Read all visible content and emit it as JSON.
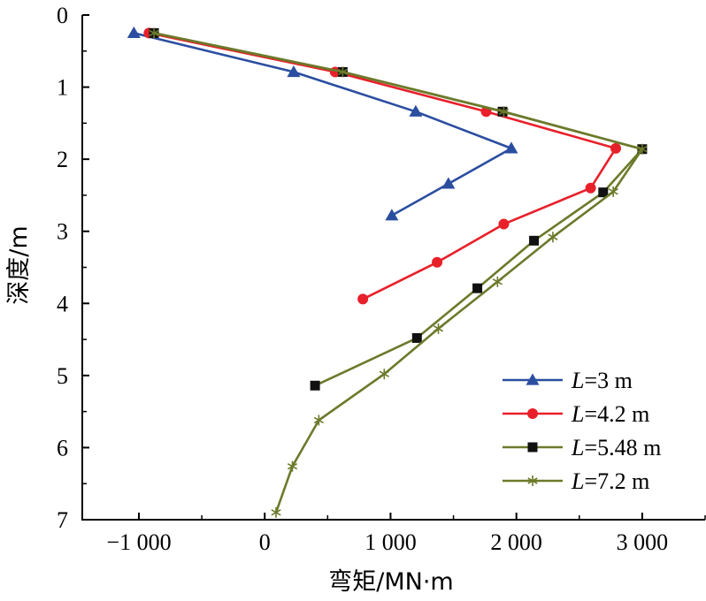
{
  "chart_data": {
    "type": "line",
    "title": "",
    "xlabel": "弯矩/MN·m",
    "ylabel": "深度/m",
    "xlim": [
      -1450,
      3500
    ],
    "ylim": [
      0,
      7
    ],
    "y_inverted": true,
    "grid": false,
    "legend_position": "bottom-right",
    "x_ticks": [
      -1000,
      0,
      1000,
      2000,
      3000
    ],
    "x_tick_labels": [
      "−1 000",
      "0",
      "1 000",
      "2 000",
      "3 000"
    ],
    "y_ticks": [
      0,
      1,
      2,
      3,
      4,
      5,
      6,
      7
    ],
    "y_tick_labels": [
      "0",
      "1",
      "2",
      "3",
      "4",
      "5",
      "6",
      "7"
    ],
    "series": [
      {
        "name_parts": [
          "L",
          "=3 m"
        ],
        "color": "#2b4ea0",
        "marker": "triangle",
        "points": [
          [
            -1040,
            0.25
          ],
          [
            230,
            0.79
          ],
          [
            1200,
            1.34
          ],
          [
            1960,
            1.85
          ],
          [
            1460,
            2.34
          ],
          [
            1010,
            2.78
          ]
        ]
      },
      {
        "name_parts": [
          "L",
          "=4.2 m"
        ],
        "color": "#e8202a",
        "marker": "circle",
        "points": [
          [
            -920,
            0.25
          ],
          [
            560,
            0.79
          ],
          [
            1760,
            1.34
          ],
          [
            2790,
            1.85
          ],
          [
            2590,
            2.4
          ],
          [
            1900,
            2.9
          ],
          [
            1370,
            3.43
          ],
          [
            780,
            3.94
          ]
        ]
      },
      {
        "name_parts": [
          "L",
          "=5.48 m"
        ],
        "color": "#6b7a2a",
        "marker": "square",
        "points": [
          [
            -880,
            0.25
          ],
          [
            620,
            0.79
          ],
          [
            1890,
            1.34
          ],
          [
            3000,
            1.86
          ],
          [
            2690,
            2.46
          ],
          [
            2140,
            3.13
          ],
          [
            1690,
            3.79
          ],
          [
            1210,
            4.48
          ],
          [
            400,
            5.14
          ]
        ]
      },
      {
        "name_parts": [
          "L",
          "=7.2 m"
        ],
        "color": "#6b7a2a",
        "marker": "star",
        "points": [
          [
            -880,
            0.25
          ],
          [
            620,
            0.79
          ],
          [
            1900,
            1.34
          ],
          [
            3000,
            1.86
          ],
          [
            2770,
            2.45
          ],
          [
            2290,
            3.08
          ],
          [
            1850,
            3.7
          ],
          [
            1380,
            4.35
          ],
          [
            950,
            4.98
          ],
          [
            430,
            5.62
          ],
          [
            220,
            6.26
          ],
          [
            90,
            6.9
          ]
        ]
      }
    ]
  }
}
